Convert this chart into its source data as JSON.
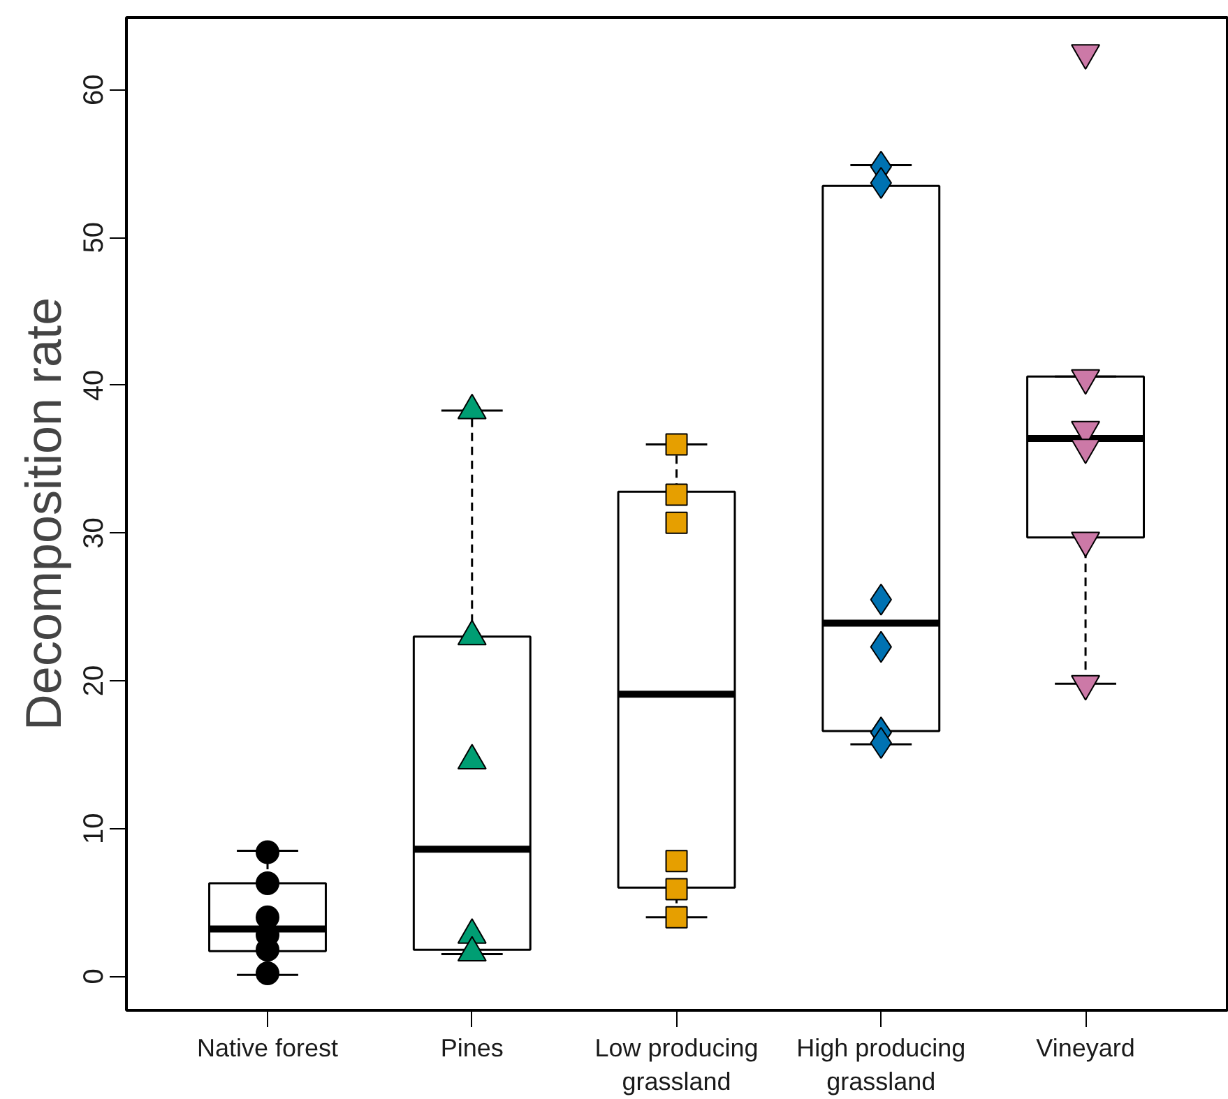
{
  "chart_data": {
    "type": "box",
    "ylabel": "Decomposition rate",
    "categories": [
      "Native forest",
      "Pines",
      "Low producing\ngrassland",
      "High producing\ngrassland",
      "Vineyard"
    ],
    "ylim": [
      -2.3,
      64.9
    ],
    "yticks": [
      0,
      10,
      20,
      30,
      40,
      50,
      60
    ],
    "grid": false,
    "color": "#000000",
    "boxes": [
      {
        "low": 0.1,
        "q1": 1.7,
        "median": 3.2,
        "q3": 6.3,
        "high": 8.5
      },
      {
        "low": 1.5,
        "q1": 1.8,
        "median": 8.6,
        "q3": 23.0,
        "high": 38.3
      },
      {
        "low": 4.0,
        "q1": 6.0,
        "median": 19.1,
        "q3": 32.8,
        "high": 36.0
      },
      {
        "low": 15.7,
        "q1": 16.6,
        "median": 23.9,
        "q3": 53.5,
        "high": 54.9
      },
      {
        "low": 19.8,
        "q1": 29.7,
        "median": 36.4,
        "q3": 40.6,
        "high": 40.6
      }
    ],
    "series": [
      {
        "type": "scatter",
        "marker": "circle",
        "color": "#000000",
        "x": [
          "Native forest",
          "Native forest",
          "Native forest",
          "Native forest",
          "Native forest",
          "Native forest"
        ],
        "values": [
          8.4,
          6.3,
          4.0,
          2.8,
          1.8,
          0.2
        ]
      },
      {
        "type": "scatter",
        "marker": "triangle",
        "color": "#009e73",
        "x": [
          "Pines",
          "Pines",
          "Pines",
          "Pines",
          "Pines"
        ],
        "values": [
          38.3,
          23.0,
          14.6,
          2.8,
          1.6
        ]
      },
      {
        "type": "scatter",
        "marker": "square",
        "color": "#e69f00",
        "x": [
          "Low producing\ngrassland",
          "Low producing\ngrassland",
          "Low producing\ngrassland",
          "Low producing\ngrassland",
          "Low producing\ngrassland",
          "Low producing\ngrassland"
        ],
        "values": [
          36.0,
          32.6,
          30.7,
          7.8,
          5.9,
          4.0
        ]
      },
      {
        "type": "scatter",
        "marker": "diamond",
        "color": "#0072b2",
        "x": [
          "High producing\ngrassland",
          "High producing\ngrassland",
          "High producing\ngrassland",
          "High producing\ngrassland",
          "High producing\ngrassland",
          "High producing\ngrassland"
        ],
        "values": [
          54.8,
          53.7,
          25.5,
          22.3,
          16.5,
          15.8
        ]
      },
      {
        "type": "scatter",
        "color": "#cc79a7",
        "x": [
          "Vineyard",
          "Vineyard",
          "Vineyard",
          "Vineyard",
          "Vineyard",
          "Vineyard"
        ],
        "values": [
          62.5,
          40.5,
          37.0,
          35.8,
          29.5,
          19.8
        ]
      }
    ]
  }
}
